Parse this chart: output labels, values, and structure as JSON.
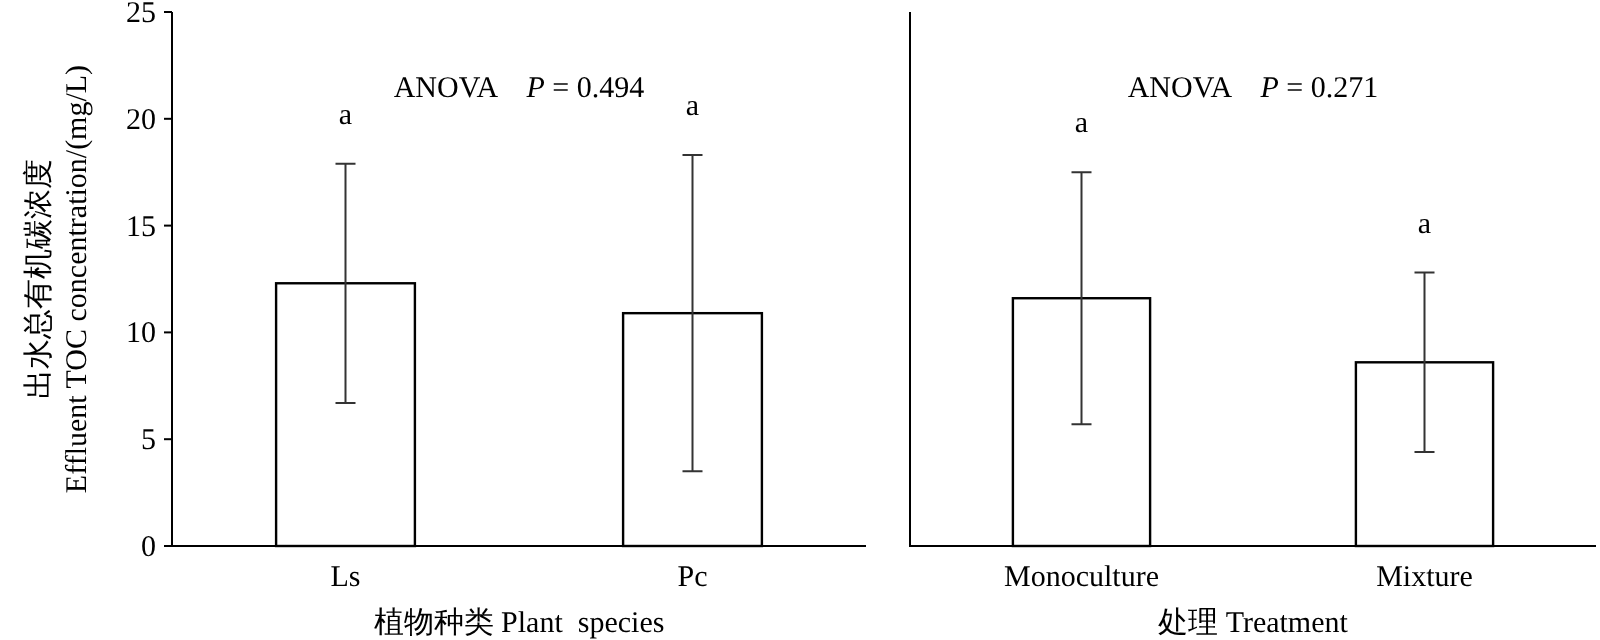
{
  "chart_data": [
    {
      "type": "bar",
      "categories": [
        "Ls",
        "Pc"
      ],
      "values": [
        12.3,
        10.9
      ],
      "errors": [
        5.6,
        7.4
      ],
      "color": "#ffffff",
      "ylim": [
        0,
        25
      ],
      "yticks": [
        0,
        5,
        10,
        15,
        20,
        25
      ],
      "ylabel": "出水总有机碳浓度\nEffluent TOC concentration/(mg/L)",
      "xlabel": "植物种类 Plant  species",
      "annotations": [
        "ANOVA    *P* = 0.494",
        "a",
        "a"
      ]
    },
    {
      "type": "bar",
      "categories": [
        "Monoculture",
        "Mixture"
      ],
      "values": [
        11.6,
        8.6
      ],
      "errors": [
        5.9,
        4.2
      ],
      "color": "#ffffff",
      "ylim": [
        0,
        25
      ],
      "tick_labels": "x",
      "xlabel": "处理 Treatment",
      "annotations": [
        "ANOVA    *P* = 0.271",
        "a",
        "a"
      ]
    }
  ]
}
